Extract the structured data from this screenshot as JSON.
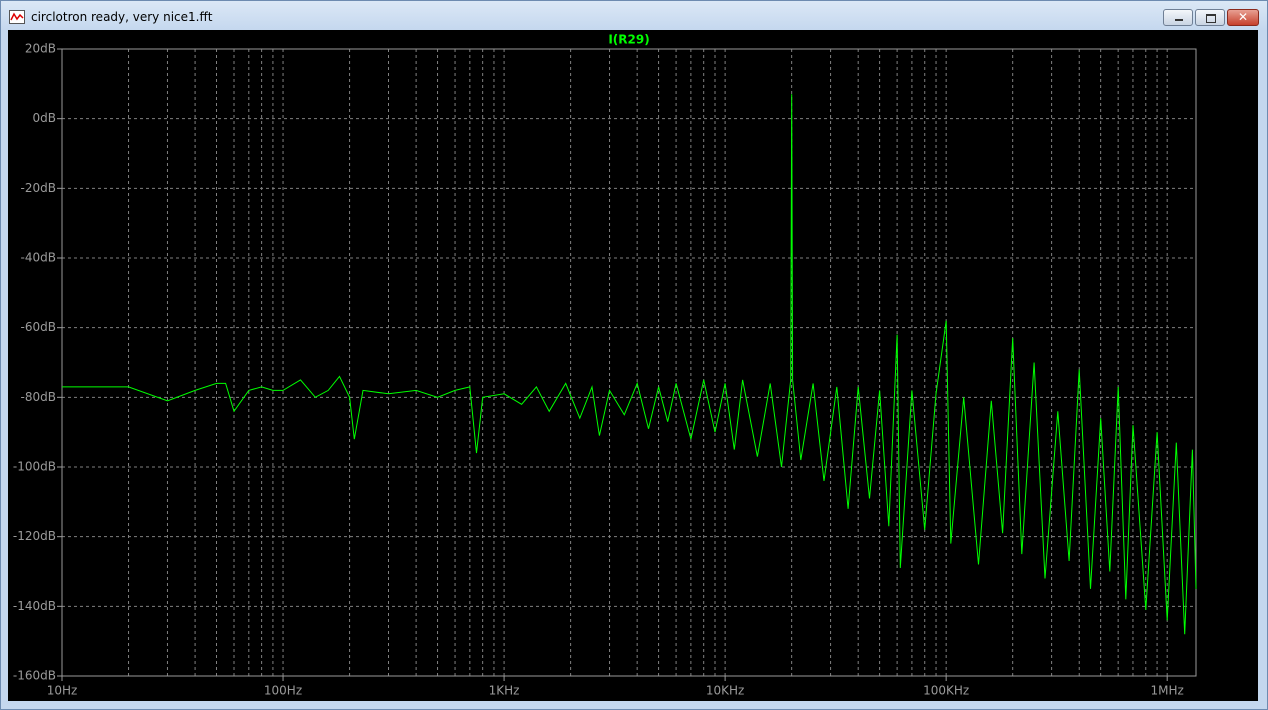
{
  "window": {
    "title": "circlotron ready, very nice1.fft"
  },
  "chart_data": {
    "type": "line",
    "xlog": true,
    "grid": true,
    "x": [
      10,
      20,
      30,
      40,
      50,
      55,
      60,
      70,
      80,
      90,
      100,
      120,
      140,
      160,
      180,
      200,
      210,
      230,
      300,
      400,
      500,
      600,
      700,
      750,
      800,
      1000,
      1200,
      1400,
      1600,
      1900,
      2200,
      2500,
      2700,
      3000,
      3500,
      4000,
      4500,
      5000,
      5500,
      6000,
      7000,
      8000,
      9000,
      10000,
      11000,
      12000,
      14000,
      16000,
      18000,
      19800,
      20000,
      20200,
      22000,
      25000,
      28000,
      32000,
      36000,
      40000,
      45000,
      50000,
      55000,
      60000,
      62000,
      70000,
      80000,
      90000,
      100000,
      105000,
      120000,
      140000,
      160000,
      180000,
      200000,
      220000,
      250000,
      280000,
      320000,
      360000,
      400000,
      450000,
      500000,
      550000,
      600000,
      650000,
      700000,
      800000,
      900000,
      1000000,
      1100000,
      1200000,
      1300000,
      1350000
    ],
    "series": [
      {
        "name": "I(R29)",
        "color": "#00ff00",
        "values": [
          -77,
          -77,
          -81,
          -78,
          -76,
          -76,
          -84,
          -78,
          -77,
          -78,
          -78,
          -75,
          -80,
          -78,
          -74,
          -80,
          -92,
          -78,
          -79,
          -78,
          -80,
          -78,
          -77,
          -96,
          -80,
          -79,
          -82,
          -77,
          -84,
          -76,
          -86,
          -77,
          -91,
          -78,
          -85,
          -76,
          -89,
          -77,
          -87,
          -76,
          -92,
          -75,
          -90,
          -76,
          -95,
          -75,
          -97,
          -76,
          -100,
          -75,
          7,
          -75,
          -98,
          -76,
          -104,
          -77,
          -112,
          -77,
          -109,
          -78,
          -117,
          -62,
          -129,
          -78,
          -118,
          -79,
          -58,
          -122,
          -80,
          -128,
          -81,
          -119,
          -63,
          -125,
          -70,
          -132,
          -84,
          -127,
          -72,
          -135,
          -86,
          -130,
          -77,
          -138,
          -88,
          -141,
          -90,
          -144,
          -93,
          -148,
          -95,
          -135
        ]
      }
    ],
    "xlim": [
      10,
      1350000
    ],
    "ylim": [
      -160,
      20
    ],
    "xticks": [
      {
        "value": 10,
        "label": "10Hz"
      },
      {
        "value": 100,
        "label": "100Hz"
      },
      {
        "value": 1000,
        "label": "1KHz"
      },
      {
        "value": 10000,
        "label": "10KHz"
      },
      {
        "value": 100000,
        "label": "100KHz"
      },
      {
        "value": 1000000,
        "label": "1MHz"
      }
    ],
    "xminorticks": [
      20,
      30,
      40,
      50,
      60,
      70,
      80,
      90,
      200,
      300,
      400,
      500,
      600,
      700,
      800,
      900,
      2000,
      3000,
      4000,
      5000,
      6000,
      7000,
      8000,
      9000,
      20000,
      30000,
      40000,
      50000,
      60000,
      70000,
      80000,
      90000,
      200000,
      300000,
      400000,
      500000,
      600000,
      700000,
      800000,
      900000
    ],
    "yticks": [
      {
        "value": 20,
        "label": "20dB"
      },
      {
        "value": 0,
        "label": "0dB"
      },
      {
        "value": -20,
        "label": "-20dB"
      },
      {
        "value": -40,
        "label": "-40dB"
      },
      {
        "value": -60,
        "label": "-60dB"
      },
      {
        "value": -80,
        "label": "-80dB"
      },
      {
        "value": -100,
        "label": "-100dB"
      },
      {
        "value": -120,
        "label": "-120dB"
      },
      {
        "value": -140,
        "label": "-140dB"
      },
      {
        "value": -160,
        "label": "-160dB"
      }
    ]
  }
}
